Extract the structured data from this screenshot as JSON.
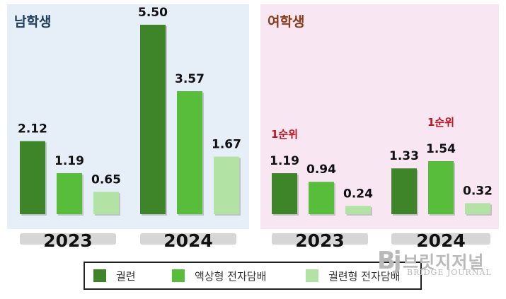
{
  "colors": {
    "cigarette": "#3e852a",
    "liquid": "#58bd3a",
    "heated": "#b3e3a4",
    "male_title": "#1f3d5c",
    "female_title": "#8b3a17",
    "rank_note": "#c0141f",
    "year_pill": "#d6d6d6"
  },
  "legend": [
    {
      "label": "궐련",
      "color": "#3e852a"
    },
    {
      "label": "액상형 전자담배",
      "color": "#58bd3a"
    },
    {
      "label": "궐련형 전자담배",
      "color": "#b3e3a4"
    }
  ],
  "watermark": {
    "logo": "Bj",
    "korean": "브릿지저널",
    "english": "BRIDGE JOURNAL"
  },
  "chart_data": [
    {
      "type": "bar",
      "title": "남학생",
      "categories": [
        "2023",
        "2024"
      ],
      "series": [
        {
          "name": "궐련",
          "values": [
            2.12,
            5.5
          ]
        },
        {
          "name": "액상형 전자담배",
          "values": [
            1.19,
            3.57
          ]
        },
        {
          "name": "궐련형 전자담배",
          "values": [
            0.65,
            1.67
          ]
        }
      ],
      "value_labels": [
        [
          "2.12",
          "1.19",
          "0.65"
        ],
        [
          "5.50",
          "3.57",
          "1.67"
        ]
      ],
      "annotations": [],
      "ylim": [
        0,
        5.5
      ]
    },
    {
      "type": "bar",
      "title": "여학생",
      "categories": [
        "2023",
        "2024"
      ],
      "series": [
        {
          "name": "궐련",
          "values": [
            1.19,
            1.33
          ]
        },
        {
          "name": "액상형 전자담배",
          "values": [
            0.94,
            1.54
          ]
        },
        {
          "name": "궐련형 전자담배",
          "values": [
            0.24,
            0.32
          ]
        }
      ],
      "value_labels": [
        [
          "1.19",
          "0.94",
          "0.24"
        ],
        [
          "1.33",
          "1.54",
          "0.32"
        ]
      ],
      "annotations": [
        {
          "text": "1순위",
          "category": "2023",
          "series": "궐련"
        },
        {
          "text": "1순위",
          "category": "2024",
          "series": "액상형 전자담배"
        }
      ],
      "ylim": [
        0,
        1.54
      ]
    }
  ]
}
